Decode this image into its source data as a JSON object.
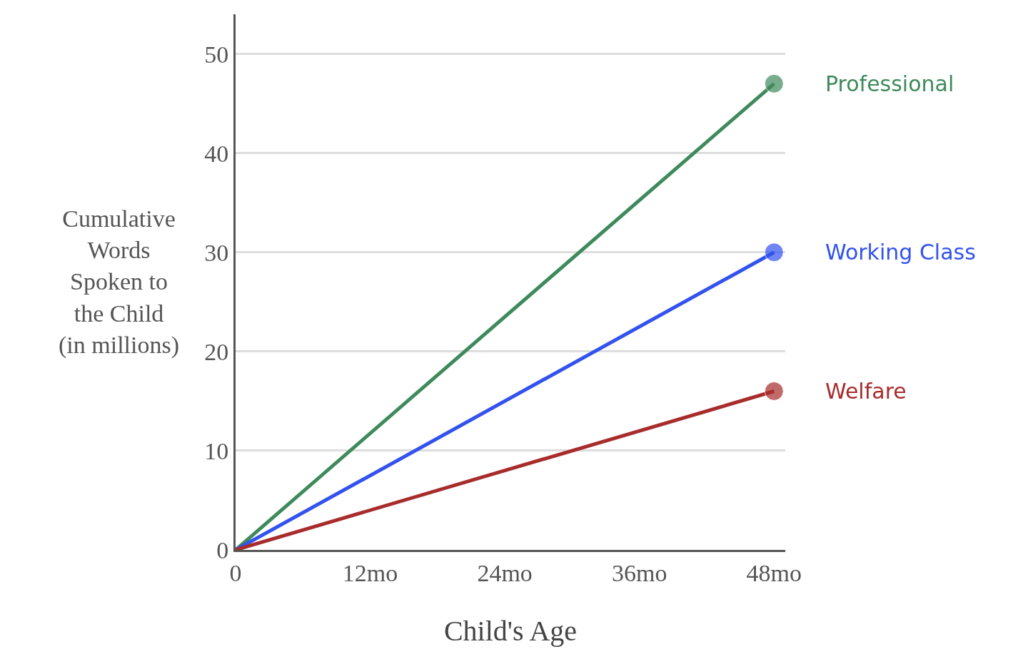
{
  "chart_data": {
    "type": "line",
    "xlabel": "Child's Age",
    "ylabel": "Cumulative\nWords\nSpoken to\nthe Child\n(in millions)",
    "x": [
      0,
      48
    ],
    "series": [
      {
        "name": "Professional",
        "color": "#3f8a5c",
        "values": [
          0,
          47
        ]
      },
      {
        "name": "Working Class",
        "color": "#3352ee",
        "values": [
          0,
          30
        ]
      },
      {
        "name": "Welfare",
        "color": "#a82c2c",
        "values": [
          0,
          16
        ]
      }
    ],
    "xlim": [
      0,
      49
    ],
    "xticks": [
      0,
      {
        "value": 12,
        "label": "12mo"
      },
      {
        "value": 24,
        "label": "24mo"
      },
      {
        "value": 36,
        "label": "36mo"
      },
      {
        "value": 48,
        "label": "48mo"
      }
    ],
    "ylim": [
      0,
      54
    ],
    "yticks": [
      0,
      10,
      20,
      30,
      40,
      50
    ],
    "grid": "y",
    "legend": false,
    "marker": "circle",
    "line_style": "solid"
  }
}
